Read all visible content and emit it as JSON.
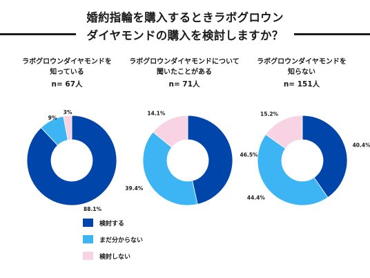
{
  "title": {
    "line1": "婚約指輪を購入するときラボグロウン",
    "line2": "ダイヤモンドの購入を検討しますか？"
  },
  "colors": {
    "consider": "#0046AA",
    "undecided": "#3DB5F4",
    "not_consider": "#F7D3E3",
    "title_rule": "#1a1a1a"
  },
  "legend": [
    {
      "label": "検討する",
      "color": "#0046AA"
    },
    {
      "label": "まだ分からない",
      "color": "#3DB5F4"
    },
    {
      "label": "検討しない",
      "color": "#F7D3E3"
    }
  ],
  "chart_data": [
    {
      "type": "pie",
      "subtitle_line1": "ラボグロウンダイヤモンドを",
      "subtitle_line2": "知っている",
      "n_label": "n= 67人",
      "slices": [
        {
          "label": "検討する",
          "value": 88.1,
          "display": "88.1%"
        },
        {
          "label": "まだ分からない",
          "value": 9,
          "display": "9%"
        },
        {
          "label": "検討しない",
          "value": 3,
          "display": "3%"
        }
      ]
    },
    {
      "type": "pie",
      "subtitle_line1": "ラボグロウンダイヤモンドについて",
      "subtitle_line2": "聞いたことがある",
      "n_label": "n= 71人",
      "slices": [
        {
          "label": "検討する",
          "value": 46.5,
          "display": "46.5%"
        },
        {
          "label": "まだ分からない",
          "value": 39.4,
          "display": "39.4%"
        },
        {
          "label": "検討しない",
          "value": 14.1,
          "display": "14.1%"
        }
      ]
    },
    {
      "type": "pie",
      "subtitle_line1": "ラボグロウンダイヤモンドを",
      "subtitle_line2": "知らない",
      "n_label": "n= 151人",
      "slices": [
        {
          "label": "検討する",
          "value": 40.4,
          "display": "40.4%"
        },
        {
          "label": "まだ分からない",
          "value": 44.4,
          "display": "44.4%"
        },
        {
          "label": "検討しない",
          "value": 15.2,
          "display": "15.2%"
        }
      ]
    }
  ]
}
